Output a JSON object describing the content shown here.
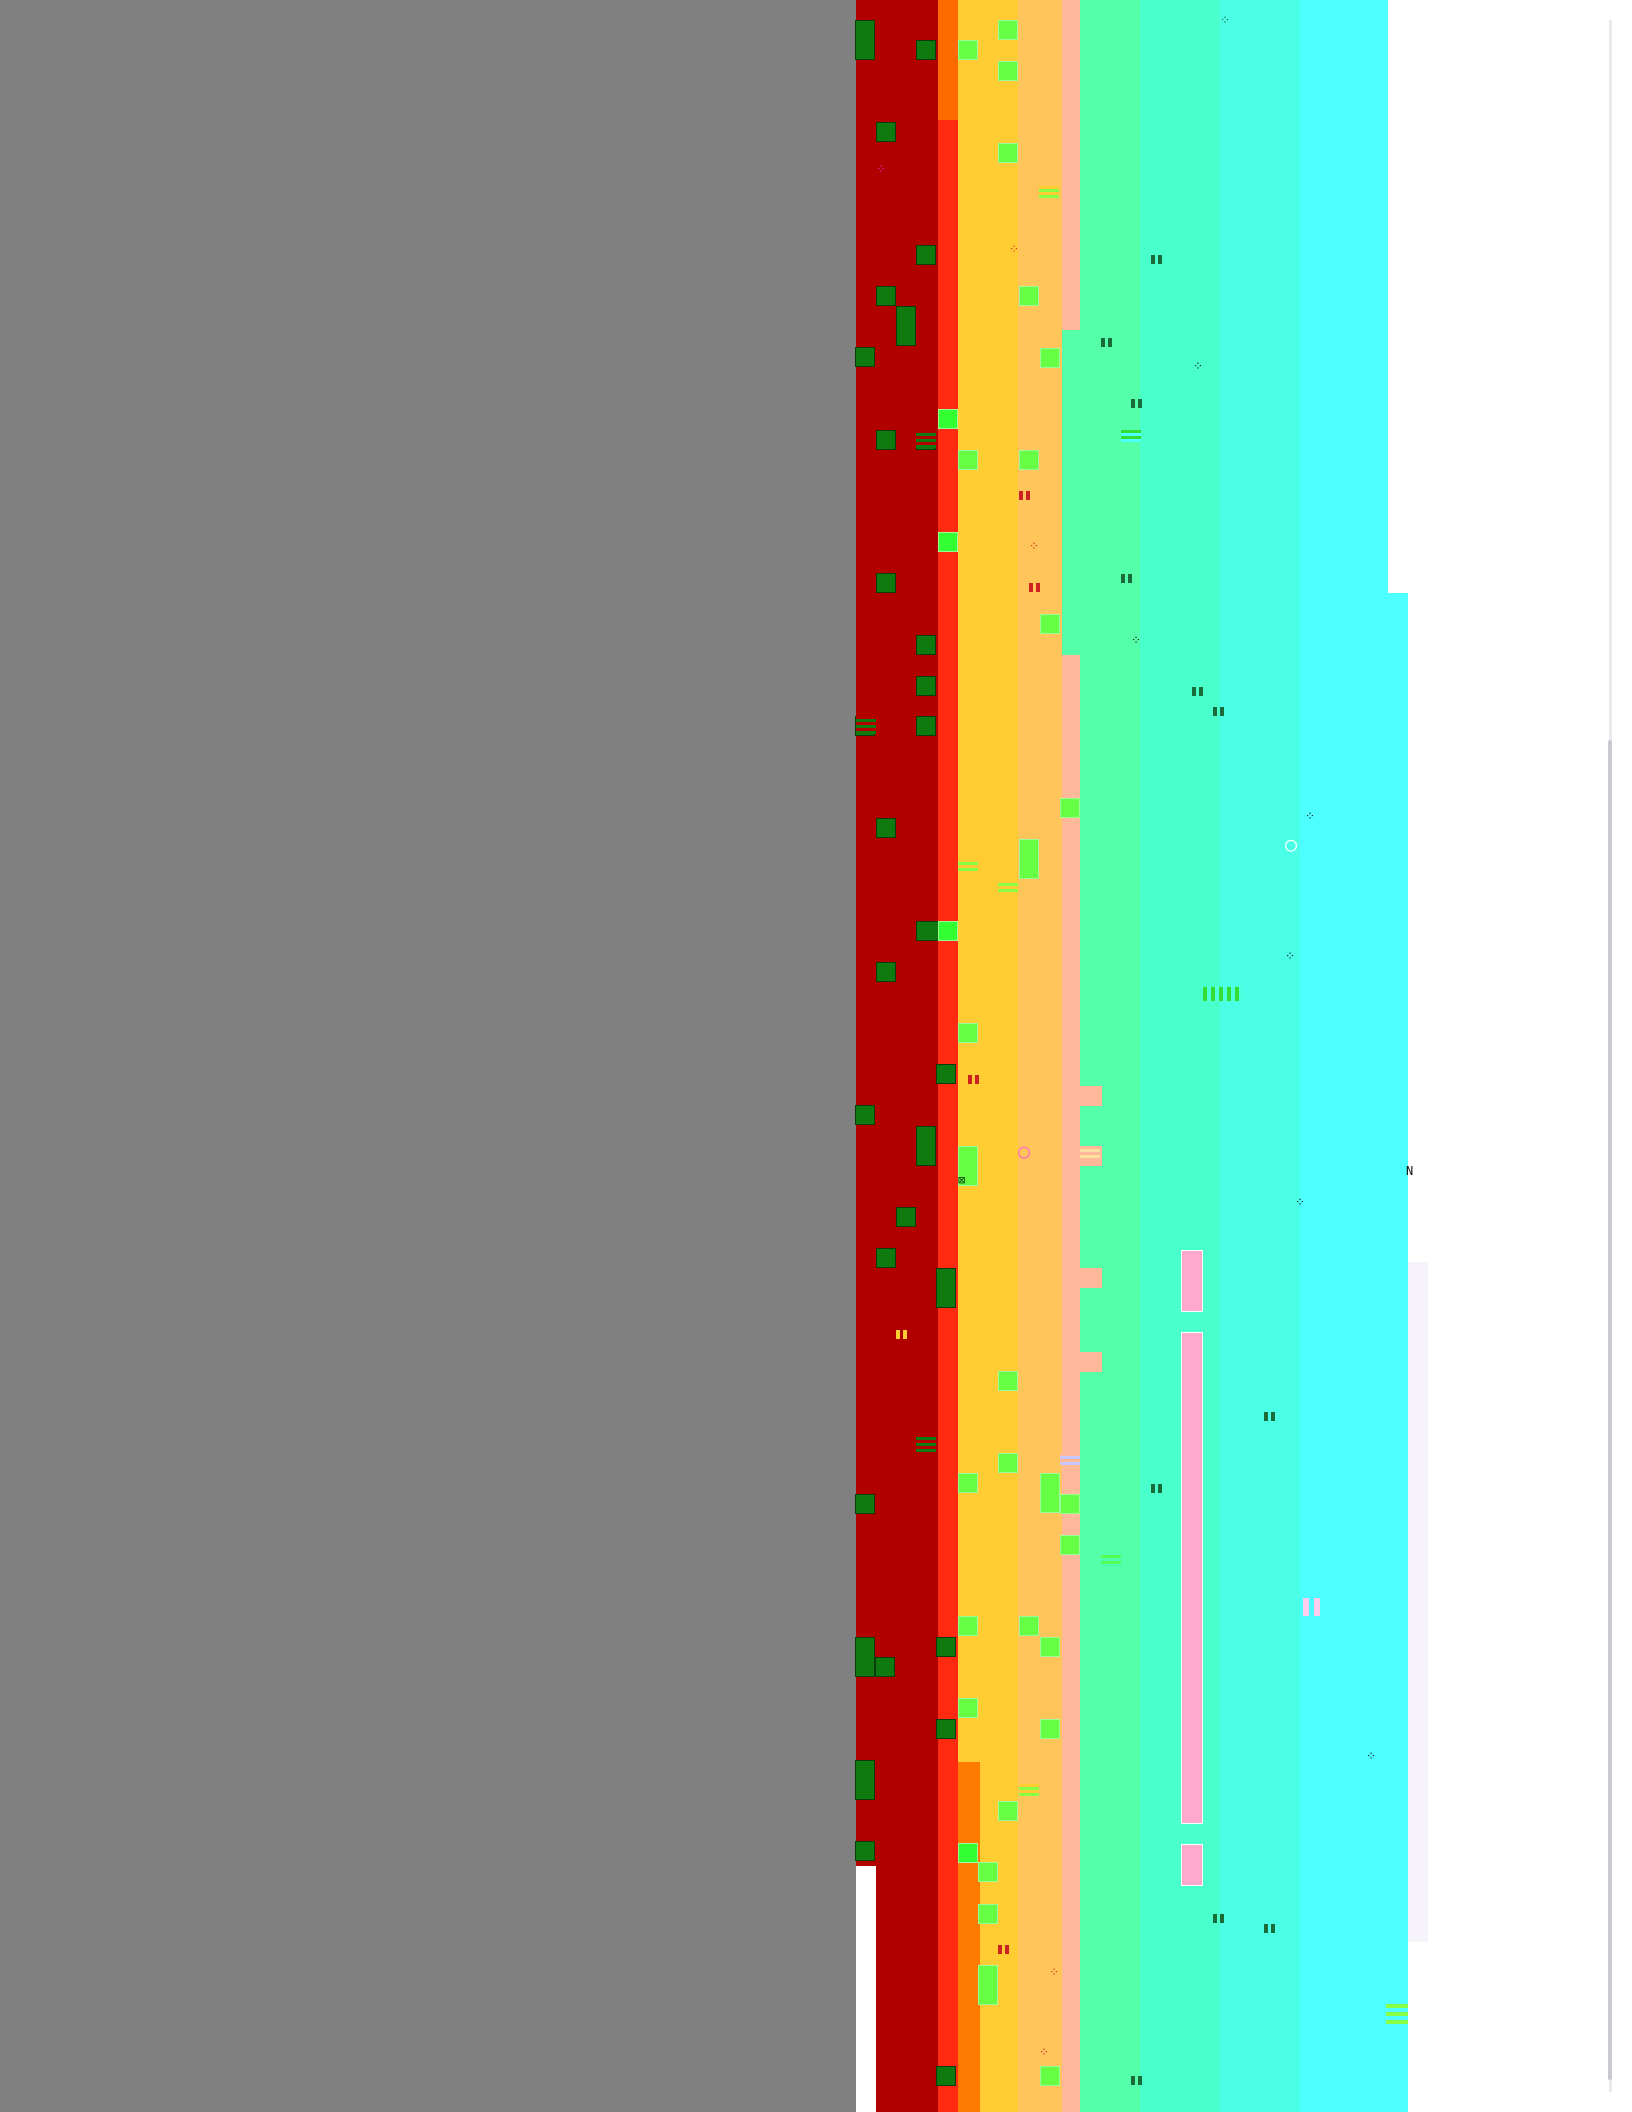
{
  "palette": {
    "gray": "#808080",
    "dark_red": "#b00000",
    "red": "#ff2a10",
    "orange": "#ff6a00",
    "amber": "#ff8c1a",
    "yellow": "#ffcc33",
    "peach": "#ffb899",
    "mint": "#4dffb0",
    "aqua": "#49ffdd",
    "cyan": "#4dffff",
    "white": "#ffffff",
    "lavender_white": "#f6f3fb",
    "dark_green": "#0f7a0f",
    "lime": "#55ff55",
    "bright_lime": "#33ff33",
    "pink": "#ffaacc",
    "magenta": "#cc33cc"
  },
  "description_free_marker": ""
}
